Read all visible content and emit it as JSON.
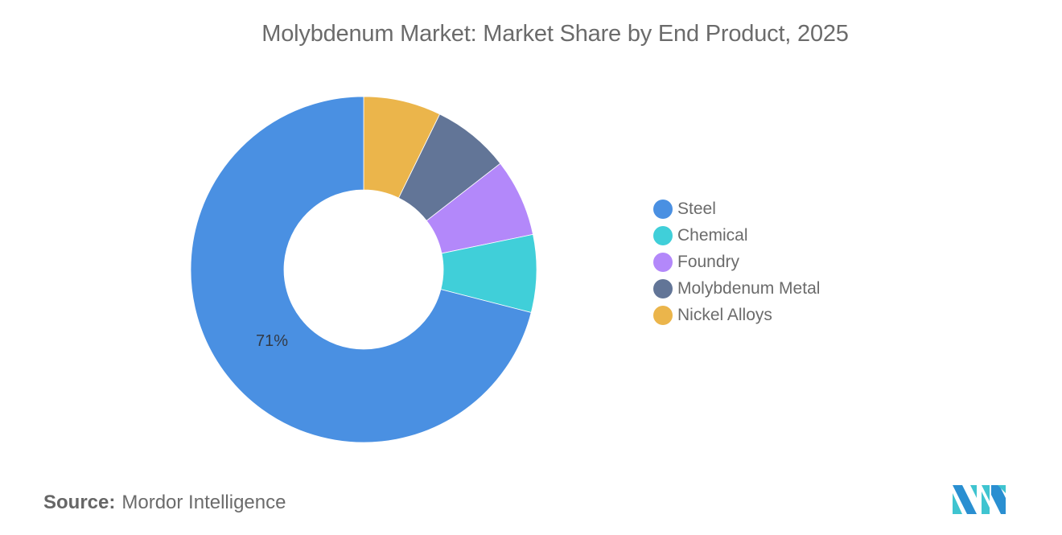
{
  "title": "Molybdenum Market: Market Share by End Product, 2025",
  "source": {
    "label": "Source:",
    "value": "Mordor Intelligence"
  },
  "logo": {
    "icon": "mordor-intelligence-logo-icon",
    "colors": [
      "#2a8fd1",
      "#3fc4d0"
    ]
  },
  "legend": {
    "items": [
      {
        "label": "Steel",
        "color": "#4a90e2"
      },
      {
        "label": "Chemical",
        "color": "#40cfd9"
      },
      {
        "label": "Foundry",
        "color": "#b388fa"
      },
      {
        "label": "Molybdenum Metal",
        "color": "#627597"
      },
      {
        "label": "Nickel Alloys",
        "color": "#ebb54b"
      }
    ]
  },
  "chart_data": {
    "type": "pie",
    "subtype": "donut",
    "title": "Molybdenum Market: Market Share by End Product, 2025",
    "categories": [
      "Nickel Alloys",
      "Molybdenum Metal",
      "Foundry",
      "Chemical",
      "Steel"
    ],
    "values": [
      7.25,
      7.25,
      7.25,
      7.25,
      71
    ],
    "colors": [
      "#ebb54b",
      "#627597",
      "#b388fa",
      "#40cfd9",
      "#4a90e2"
    ],
    "data_labels": [
      {
        "category": "Steel",
        "text": "71%"
      }
    ],
    "start_angle": "top, clockwise",
    "legend_position": "right",
    "legend_order": [
      "Steel",
      "Chemical",
      "Foundry",
      "Molybdenum Metal",
      "Nickel Alloys"
    ],
    "source": "Mordor Intelligence"
  }
}
